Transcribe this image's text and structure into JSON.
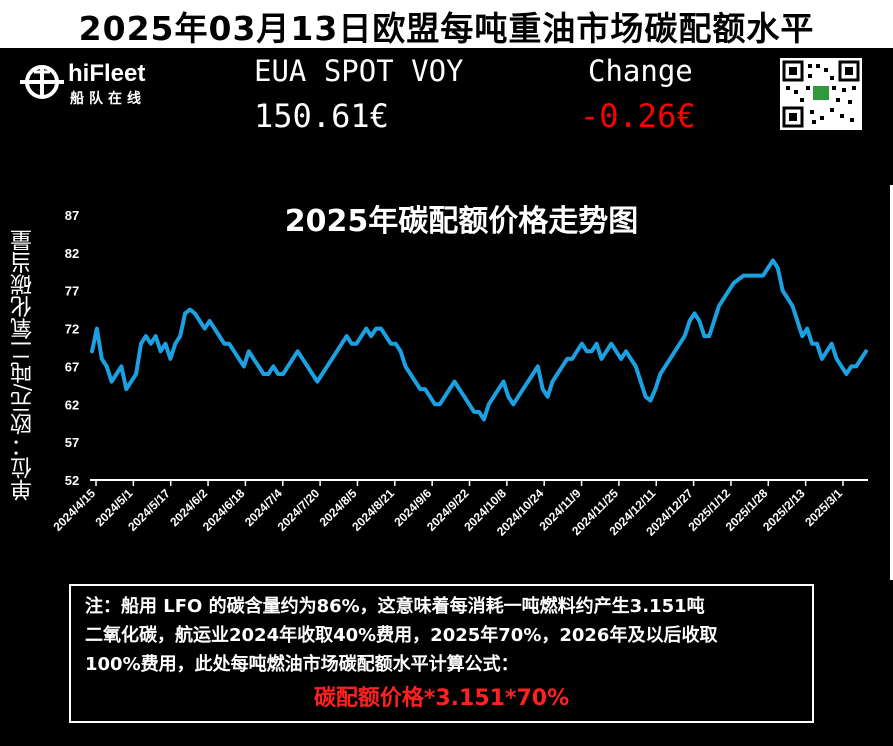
{
  "header": {
    "title": "2025年03月13日欧盟每吨重油市场碳配额水平",
    "logo_text": "hiFleet",
    "logo_sub": "船队在线",
    "eua_label": "EUA SPOT VOY",
    "eua_value": "150.61€",
    "change_label": "Change",
    "change_value": "-0.26€",
    "change_color": "#ff0000"
  },
  "chart_data": {
    "type": "line",
    "title": "2025年碳配额价格走势图",
    "ylabel": "单位：欧元/吨二氧化碳当量",
    "xlabel": "",
    "ylim": [
      52,
      87
    ],
    "y_ticks": [
      52,
      57,
      62,
      67,
      72,
      77,
      82,
      87
    ],
    "x_tick_labels": [
      "2024/4/15",
      "2024/5/1",
      "2024/5/17",
      "2024/6/2",
      "2024/6/18",
      "2024/7/4",
      "2024/7/20",
      "2024/8/5",
      "2024/8/21",
      "2024/9/6",
      "2024/9/22",
      "2024/10/8",
      "2024/10/24",
      "2024/11/9",
      "2024/11/25",
      "2024/12/11",
      "2024/12/27",
      "2025/1/12",
      "2025/1/28",
      "2025/2/13",
      "2025/3/1"
    ],
    "line_color": "#1ba1e2",
    "series": [
      {
        "values": [
          69,
          72,
          68,
          67,
          65,
          66,
          67,
          64,
          65,
          66,
          70,
          71,
          70,
          71,
          69,
          70,
          68,
          70,
          71,
          74,
          74.5,
          74,
          73,
          72,
          73,
          72,
          71,
          70,
          70,
          69,
          68,
          67,
          69,
          68,
          67,
          66,
          66,
          67,
          66,
          66,
          67,
          68,
          69,
          68,
          67,
          66,
          65,
          66,
          67,
          68,
          69,
          70,
          71,
          70,
          70,
          71,
          72,
          71,
          72,
          72,
          71,
          70,
          70,
          69,
          67,
          66,
          65,
          64,
          64,
          63,
          62,
          62,
          63,
          64,
          65,
          64,
          63,
          62,
          61,
          61,
          60,
          62,
          63,
          64,
          65,
          63,
          62,
          63,
          64,
          65,
          66,
          67,
          64,
          63,
          65,
          66,
          67,
          68,
          68,
          69,
          70,
          69,
          69,
          70,
          68,
          69,
          70,
          69,
          68,
          69,
          68,
          67,
          65,
          63,
          62.5,
          64,
          66,
          67,
          68,
          69,
          70,
          71,
          73,
          74,
          73,
          71,
          71,
          73,
          75,
          76,
          77,
          78,
          78.5,
          79,
          79,
          79,
          79,
          79,
          80,
          81,
          80,
          77,
          76,
          75,
          73,
          71,
          72,
          70,
          70,
          68,
          69,
          70,
          68,
          67,
          66,
          67,
          67,
          68,
          69
        ]
      }
    ]
  },
  "qr_icon": "qr-code-icon",
  "logo_icon": "ship-wheel-icon",
  "note": {
    "lines": [
      "注：船用 LFO 的碳含量约为86%，这意味着每消耗一吨燃料约产生3.151吨",
      "二氧化碳，航运业2024年收取40%费用，2025年70%，2026年及以后收取",
      "100%费用，此处每吨燃油市场碳配额水平计算公式："
    ],
    "formula": "碳配额价格*3.151*70%",
    "formula_color": "#ff2020"
  }
}
